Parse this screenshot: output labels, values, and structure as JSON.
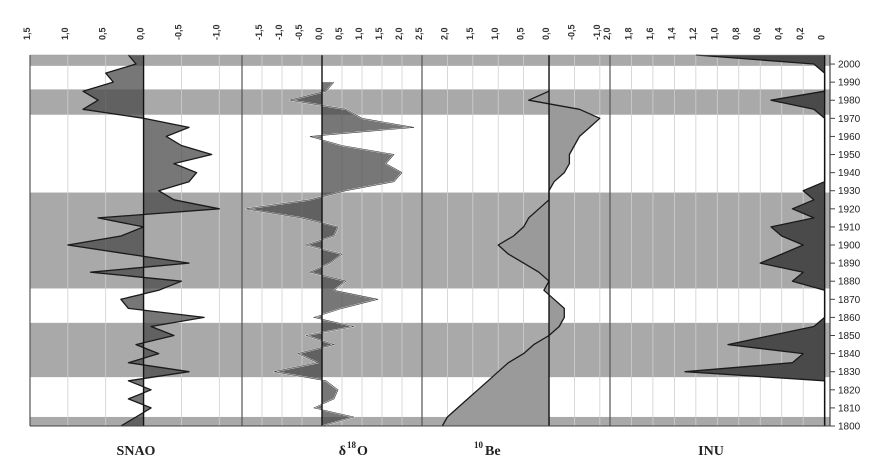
{
  "chart_data": [
    {
      "type": "line",
      "panel": "SNAO",
      "xlabel": "SNAO",
      "x_ticks": [
        "1,5",
        "1,0",
        "0,5",
        "0,0",
        "-0,5",
        "-1,0"
      ],
      "xlim": [
        1.5,
        -1.3
      ],
      "ylabel": "",
      "ylim": [
        1800,
        2005
      ],
      "y": [
        1800,
        1805,
        1810,
        1815,
        1820,
        1825,
        1830,
        1835,
        1840,
        1845,
        1850,
        1855,
        1860,
        1865,
        1870,
        1875,
        1880,
        1885,
        1890,
        1895,
        1900,
        1905,
        1910,
        1915,
        1920,
        1925,
        1930,
        1935,
        1940,
        1945,
        1950,
        1955,
        1960,
        1965,
        1970,
        1975,
        1980,
        1985,
        1990,
        1995,
        2000,
        2005
      ],
      "values": [
        0.3,
        0.1,
        -0.1,
        0.2,
        -0.1,
        0.2,
        -0.6,
        0.2,
        -0.2,
        0.1,
        -0.4,
        -0.1,
        -0.8,
        0.2,
        0.3,
        -0.2,
        -0.5,
        0.7,
        -0.6,
        0.2,
        1.0,
        0.3,
        0.0,
        0.6,
        -1.0,
        -0.4,
        -0.2,
        -0.6,
        -0.7,
        -0.4,
        -0.9,
        -0.5,
        -0.3,
        -0.6,
        0.0,
        0.8,
        0.6,
        0.8,
        0.4,
        0.5,
        0.1,
        0.2
      ]
    },
    {
      "type": "line",
      "panel": "d18O",
      "xlabel": "δ18O",
      "x_ticks": [
        "-1,5",
        "-1,0",
        "-0,5",
        "0,0",
        "0,5",
        "1,0",
        "1,5",
        "2,0"
      ],
      "xlim": [
        -2.0,
        2.5
      ],
      "ylabel": "",
      "ylim": [
        1800,
        2005
      ],
      "y": [
        1800,
        1805,
        1810,
        1815,
        1820,
        1825,
        1830,
        1835,
        1840,
        1845,
        1850,
        1855,
        1860,
        1865,
        1870,
        1875,
        1880,
        1885,
        1890,
        1895,
        1900,
        1905,
        1910,
        1915,
        1920,
        1925,
        1930,
        1935,
        1940,
        1945,
        1950,
        1955,
        1960,
        1965,
        1970,
        1975,
        1980,
        1985,
        1990
      ],
      "values": [
        0.0,
        0.8,
        -0.2,
        0.3,
        0.4,
        0.1,
        -1.2,
        -0.1,
        -0.6,
        0.3,
        -0.4,
        0.8,
        -0.2,
        0.5,
        1.4,
        0.3,
        0.6,
        -0.3,
        0.2,
        0.5,
        -0.4,
        0.3,
        0.4,
        -0.5,
        -1.9,
        -0.3,
        0.6,
        1.8,
        2.0,
        1.6,
        1.8,
        0.5,
        -0.3,
        2.3,
        1.0,
        0.6,
        -0.8,
        0.1,
        0.3
      ]
    },
    {
      "type": "area",
      "panel": "10Be",
      "xlabel": "10Be",
      "x_ticks": [
        "2,5",
        "2,0",
        "1,5",
        "1,0",
        "0,5",
        "0,0",
        "-0,5",
        "-1,0"
      ],
      "xlim": [
        2.5,
        -1.2
      ],
      "ylabel": "",
      "ylim": [
        1800,
        2005
      ],
      "y": [
        1800,
        1805,
        1810,
        1815,
        1820,
        1825,
        1830,
        1835,
        1840,
        1845,
        1850,
        1855,
        1860,
        1865,
        1870,
        1875,
        1880,
        1885,
        1890,
        1895,
        1900,
        1905,
        1910,
        1915,
        1920,
        1925,
        1930,
        1935,
        1940,
        1945,
        1950,
        1955,
        1960,
        1965,
        1970,
        1975,
        1980,
        1985
      ],
      "values": [
        2.1,
        2.0,
        1.8,
        1.6,
        1.4,
        1.2,
        1.0,
        0.8,
        0.5,
        0.3,
        0.0,
        -0.2,
        -0.3,
        -0.3,
        -0.1,
        0.1,
        0.0,
        0.2,
        0.5,
        0.8,
        1.0,
        0.7,
        0.5,
        0.4,
        0.2,
        0.0,
        0.0,
        -0.1,
        -0.3,
        -0.4,
        -0.4,
        -0.5,
        -0.6,
        -0.8,
        -1.0,
        -0.6,
        0.4,
        0.0
      ]
    },
    {
      "type": "area",
      "panel": "INU",
      "xlabel": "INU",
      "x_ticks": [
        "2,0",
        "1,8",
        "1,6",
        "1,4",
        "1,2",
        "1,0",
        "0,8",
        "0,6",
        "0,4",
        "0,2",
        "0"
      ],
      "xlim": [
        2.0,
        -0.05
      ],
      "ylabel": "",
      "ylim": [
        1800,
        2005
      ],
      "y": [
        1800,
        1805,
        1810,
        1815,
        1820,
        1825,
        1830,
        1835,
        1840,
        1845,
        1850,
        1855,
        1860,
        1865,
        1870,
        1875,
        1880,
        1885,
        1890,
        1895,
        1900,
        1905,
        1910,
        1915,
        1920,
        1925,
        1930,
        1935,
        1940,
        1945,
        1950,
        1955,
        1960,
        1965,
        1970,
        1975,
        1980,
        1985,
        1990,
        1995,
        2000,
        2005
      ],
      "values": [
        0,
        0,
        0,
        0,
        0,
        0,
        1.3,
        0.3,
        0.2,
        0.9,
        0.5,
        0.1,
        0,
        0,
        0,
        0,
        0.3,
        0.2,
        0.6,
        0.4,
        0.2,
        0.4,
        0.5,
        0.1,
        0.3,
        0.1,
        0.2,
        0,
        0,
        0,
        0,
        0,
        0,
        0,
        0,
        0.1,
        0.5,
        0,
        0,
        0,
        0.1,
        1.2
      ]
    }
  ],
  "y_axis": {
    "ticks": [
      "1800",
      "1810",
      "1820",
      "1830",
      "1840",
      "1850",
      "1860",
      "1870",
      "1880",
      "1890",
      "1900",
      "1910",
      "1920",
      "1930",
      "1940",
      "1950",
      "1960",
      "1970",
      "1980",
      "1990",
      "2000"
    ]
  },
  "shaded_periods": [
    [
      1800,
      1805
    ],
    [
      1827,
      1857
    ],
    [
      1876,
      1929
    ],
    [
      1972,
      1986
    ],
    [
      1999,
      2005
    ]
  ],
  "colors": {
    "shade": "#a9a9a9",
    "fill_dark": "#4a4a4a",
    "fill_light": "#9a9a9a",
    "line": "#1a1a1a",
    "grid": "#cfcfcf"
  },
  "panel_labels": [
    "SNAO",
    "δ",
    "18",
    "O",
    "10",
    "Be",
    "INU"
  ]
}
